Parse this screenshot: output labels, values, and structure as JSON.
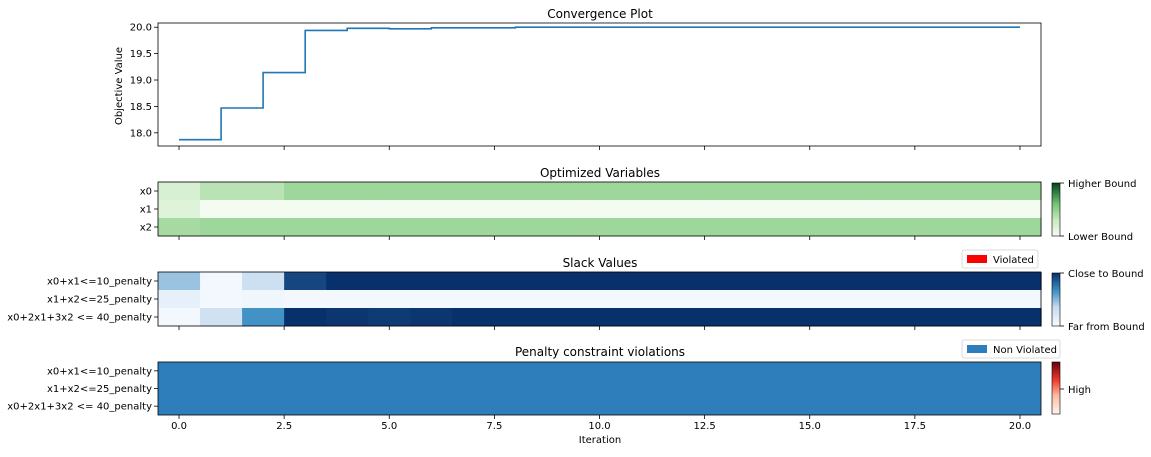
{
  "chart_data": [
    {
      "type": "line",
      "title": "Convergence Plot",
      "xlabel": "",
      "ylabel": "Objective Value",
      "step": "post",
      "line_color": "#1f77b4",
      "x": [
        0,
        1,
        2,
        3,
        4,
        5,
        6,
        7,
        8,
        9,
        10,
        11,
        12,
        13,
        14,
        15,
        16,
        17,
        18,
        19,
        20
      ],
      "y": [
        17.87,
        18.47,
        19.14,
        19.94,
        19.98,
        19.97,
        19.99,
        19.99,
        20.0,
        20.0,
        20.0,
        20.0,
        20.0,
        20.0,
        20.0,
        20.0,
        20.0,
        20.0,
        20.0,
        20.0,
        20.0
      ],
      "xlim": [
        -0.5,
        20.5
      ],
      "ylim": [
        17.75,
        20.08
      ],
      "yticks": [
        18.0,
        18.5,
        19.0,
        19.5,
        20.0
      ],
      "ytick_labels": [
        "18.0",
        "18.5",
        "19.0",
        "19.5",
        "20.0"
      ]
    },
    {
      "type": "heatmap",
      "title": "Optimized Variables",
      "rows": [
        "x0",
        "x1",
        "x2"
      ],
      "colorscale": "Greens",
      "colorbar_labels": [
        "Higher Bound",
        "Lower Bound"
      ],
      "values": [
        [
          0.2,
          0.35,
          0.35,
          0.45,
          0.45,
          0.45,
          0.45,
          0.45,
          0.45,
          0.45,
          0.45,
          0.45,
          0.45,
          0.45,
          0.45,
          0.45,
          0.45,
          0.45,
          0.45,
          0.45,
          0.45
        ],
        [
          0.15,
          0.02,
          0.02,
          0.02,
          0.02,
          0.02,
          0.02,
          0.02,
          0.02,
          0.02,
          0.02,
          0.02,
          0.02,
          0.02,
          0.02,
          0.02,
          0.02,
          0.02,
          0.02,
          0.02,
          0.02
        ],
        [
          0.42,
          0.45,
          0.45,
          0.45,
          0.45,
          0.45,
          0.45,
          0.45,
          0.45,
          0.45,
          0.45,
          0.45,
          0.45,
          0.45,
          0.45,
          0.45,
          0.45,
          0.45,
          0.45,
          0.45,
          0.45
        ]
      ]
    },
    {
      "type": "heatmap",
      "title": "Slack Values",
      "rows": [
        "x0+x1<=10_penalty",
        "x1+x2<=25_penalty",
        "x0+2x1+3x2 <= 40_penalty"
      ],
      "colorscale": "Blues",
      "colorbar_labels": [
        "Close to Bound",
        "Far from Bound"
      ],
      "legend": [
        {
          "label": "Violated",
          "color": "#ff0000"
        }
      ],
      "values": [
        [
          0.45,
          0.03,
          0.3,
          0.92,
          1.0,
          1.0,
          1.0,
          1.0,
          1.0,
          1.0,
          1.0,
          1.0,
          1.0,
          1.0,
          1.0,
          1.0,
          1.0,
          1.0,
          1.0,
          1.0,
          1.0
        ],
        [
          0.12,
          0.03,
          0.06,
          0.03,
          0.03,
          0.03,
          0.03,
          0.03,
          0.03,
          0.03,
          0.03,
          0.03,
          0.03,
          0.03,
          0.03,
          0.03,
          0.03,
          0.03,
          0.03,
          0.03,
          0.03
        ],
        [
          0.03,
          0.28,
          0.65,
          1.0,
          0.98,
          0.96,
          0.98,
          1.0,
          1.0,
          1.0,
          1.0,
          1.0,
          1.0,
          1.0,
          1.0,
          1.0,
          1.0,
          1.0,
          1.0,
          1.0,
          1.0
        ]
      ]
    },
    {
      "type": "heatmap",
      "title": "Penalty constraint violations",
      "rows": [
        "x0+x1<=10_penalty",
        "x1+x2<=25_penalty",
        "x0+2x1+3x2 <= 40_penalty"
      ],
      "colorscale": "Reds",
      "colorbar_labels": [
        "High"
      ],
      "legend": [
        {
          "label": "Non Violated",
          "color": "#2e7ebc"
        }
      ],
      "non_violated_color": "#2e7ebc",
      "xlabel": "Iteration",
      "xticks": [
        0.0,
        2.5,
        5.0,
        7.5,
        10.0,
        12.5,
        15.0,
        17.5,
        20.0
      ],
      "xtick_labels": [
        "0.0",
        "2.5",
        "5.0",
        "7.5",
        "10.0",
        "12.5",
        "15.0",
        "17.5",
        "20.0"
      ]
    }
  ]
}
